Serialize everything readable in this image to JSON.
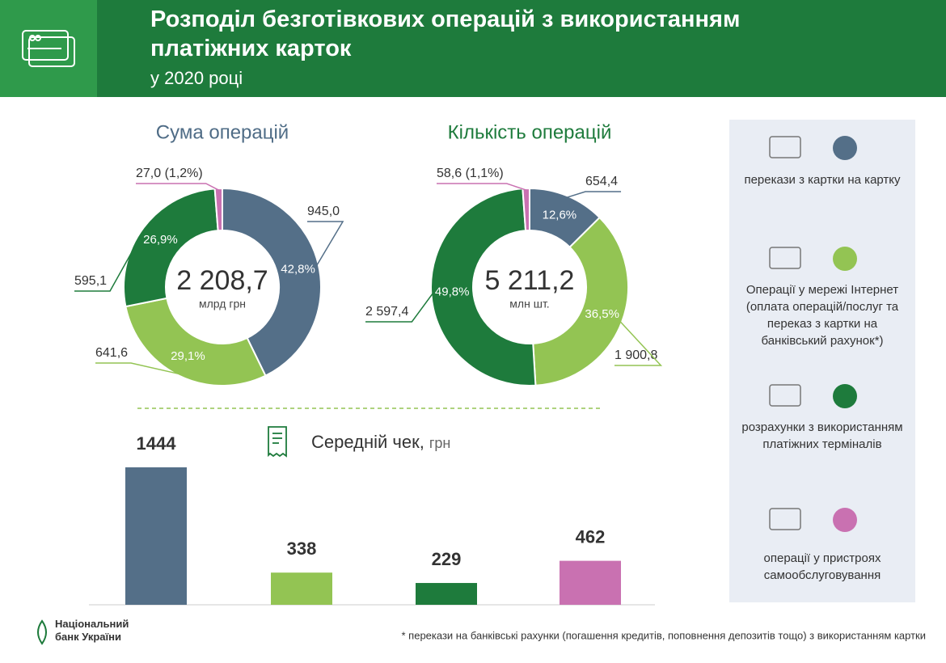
{
  "header": {
    "title": "Розподіл безготівкових операцій з використанням платіжних карток",
    "subtitle": "у 2020 році"
  },
  "chart_data": [
    {
      "type": "donut",
      "title": "Сума операцій",
      "total": {
        "value": 2208.7,
        "label": "2 208,7"
      },
      "total_unit": "млрд грн",
      "values": [
        945.0,
        641.6,
        595.1,
        27.0
      ],
      "value_labels": [
        "945,0",
        "641,6",
        "595,1",
        "27,0 (1,2%)"
      ],
      "percent_labels": [
        "42,8%",
        "29,1%",
        "26,9%",
        null
      ],
      "colors": [
        "#546f88",
        "#93c453",
        "#1e7b3c",
        "#c971b1"
      ]
    },
    {
      "type": "donut",
      "title": "Кількість операцій",
      "total": {
        "value": 5211.2,
        "label": "5 211,2"
      },
      "total_unit": "млн шт.",
      "values": [
        654.4,
        1900.8,
        2597.4,
        58.6
      ],
      "value_labels": [
        "654,4",
        "1 900,8",
        "2 597,4",
        "58,6 (1,1%)"
      ],
      "percent_labels": [
        "12,6%",
        "36,5%",
        "49,8%",
        null
      ],
      "colors": [
        "#546f88",
        "#93c453",
        "#1e7b3c",
        "#c971b1"
      ]
    },
    {
      "type": "bar",
      "title": "Середній чек,",
      "unit": "грн",
      "values": [
        1444,
        338,
        229,
        462
      ],
      "colors": [
        "#546f88",
        "#93c453",
        "#1e7b3c",
        "#c971b1"
      ]
    }
  ],
  "legend": {
    "items": [
      {
        "label": "перекази з картки на картку",
        "color": "#546f88"
      },
      {
        "label": "Операції у мережі Інтернет (оплата операцій/послуг та переказ з картки на банківський рахунок*)",
        "color": "#93c453"
      },
      {
        "label": "розрахунки з використанням платіжних терміналів",
        "color": "#1e7b3c"
      },
      {
        "label": "операції у пристроях самообслуговування",
        "color": "#c971b1"
      }
    ]
  },
  "footer": {
    "logo": "Національний банк України",
    "note": "* перекази на банківські рахунки (погашення кредитів, поповнення депозитів тощо) з використанням картки"
  }
}
